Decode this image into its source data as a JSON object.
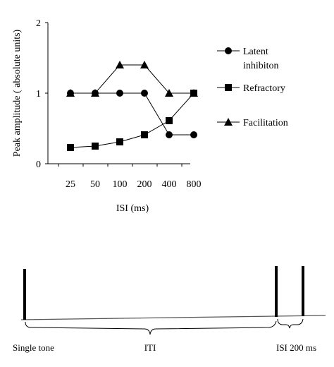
{
  "chart_data": {
    "type": "line",
    "title": "",
    "xlabel": "ISI (ms)",
    "ylabel": "Peak amplitude ( absolute units)",
    "categories": [
      "25",
      "50",
      "100",
      "200",
      "400",
      "800"
    ],
    "ylim": [
      0,
      2
    ],
    "yticks": [
      "0",
      "1",
      "2"
    ],
    "grid": false,
    "legend_position": "right",
    "series": [
      {
        "name": "Latent inhibition",
        "legend_lines": [
          "Latent",
          "inhibiton"
        ],
        "marker": "circle",
        "values": [
          1.0,
          1.0,
          1.0,
          1.0,
          0.41,
          0.41
        ]
      },
      {
        "name": "Refractory",
        "legend_lines": [
          "Refractory"
        ],
        "marker": "square",
        "values": [
          0.23,
          0.25,
          0.31,
          0.41,
          0.61,
          1.0
        ]
      },
      {
        "name": "Facilitation",
        "legend_lines": [
          "Facilitation"
        ],
        "marker": "triangle",
        "values": [
          1.0,
          1.0,
          1.4,
          1.4,
          1.0,
          1.0
        ]
      }
    ]
  },
  "timeline": {
    "single_tone_label": "Single tone",
    "iti_label": "ITI",
    "isi_label": "ISI 200 ms"
  }
}
